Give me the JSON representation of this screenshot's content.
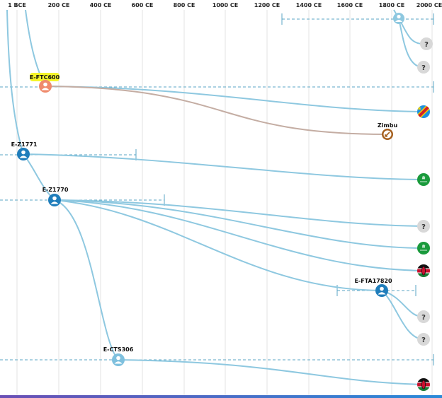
{
  "timeline": {
    "axis_ticks": [
      "1 BCE",
      "200 CE",
      "400 CE",
      "600 CE",
      "800 CE",
      "1000 CE",
      "1200 CE",
      "1400 CE",
      "1600 CE",
      "1800 CE",
      "2000 CE"
    ]
  },
  "nodes": {
    "root_icon": "person-icon",
    "e_ftc600": {
      "label": "E-FTC600",
      "color": "#ef8a6c",
      "highlight": "#f5f52a"
    },
    "zimbu": {
      "label": "Zimbu",
      "color": "#a5601f"
    },
    "e_z1771": {
      "label": "E-Z1771",
      "color": "#1f7dbb"
    },
    "e_z1770": {
      "label": "E-Z1770",
      "color": "#1f7dbb"
    },
    "e_fta17820": {
      "label": "E-FTA17820",
      "color": "#1f7dbb"
    },
    "e_cts306": {
      "label": "E-CTS306",
      "color": "#7ec0de"
    }
  },
  "leaves": [
    {
      "icon": "unknown-country-icon",
      "symbol": "?"
    },
    {
      "icon": "unknown-country-icon",
      "symbol": "?"
    },
    {
      "icon": "dr-congo-flag-icon"
    },
    {
      "icon": "saudi-arabia-flag-icon"
    },
    {
      "icon": "unknown-country-icon",
      "symbol": "?"
    },
    {
      "icon": "saudi-arabia-flag-icon"
    },
    {
      "icon": "kenya-flag-icon"
    },
    {
      "icon": "unknown-country-icon",
      "symbol": "?"
    },
    {
      "icon": "unknown-country-icon",
      "symbol": "?"
    },
    {
      "icon": "kenya-flag-icon"
    }
  ],
  "colors": {
    "branch": "#8ec8e0",
    "ancestral_branch": "#c4ada3",
    "date_range": "#5aa6c4",
    "bottom_bar_start": "#6a4fb5",
    "bottom_bar_end": "#2a8ad8"
  }
}
